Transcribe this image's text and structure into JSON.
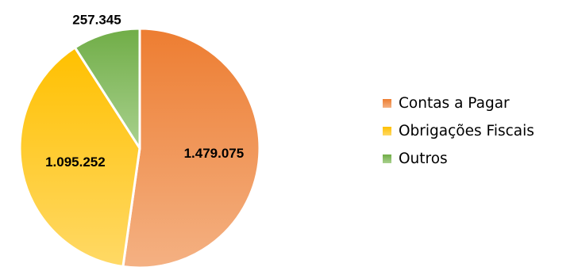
{
  "chart_data": {
    "type": "pie",
    "title": "",
    "slices": [
      {
        "label": "Contas a Pagar",
        "value": 1479075,
        "display": "1.479.075",
        "color_start": "#ED7D31",
        "color_end": "#F4B183"
      },
      {
        "label": "Obrigações Fiscais",
        "value": 1095252,
        "display": "1.095.252",
        "color_start": "#FFC000",
        "color_end": "#FFD966"
      },
      {
        "label": "Outros",
        "value": 257345,
        "display": "257.345",
        "color_start": "#70AD47",
        "color_end": "#A9D18E"
      }
    ],
    "start_angle_deg": 0,
    "direction": "clockwise",
    "legend_position": "right"
  }
}
